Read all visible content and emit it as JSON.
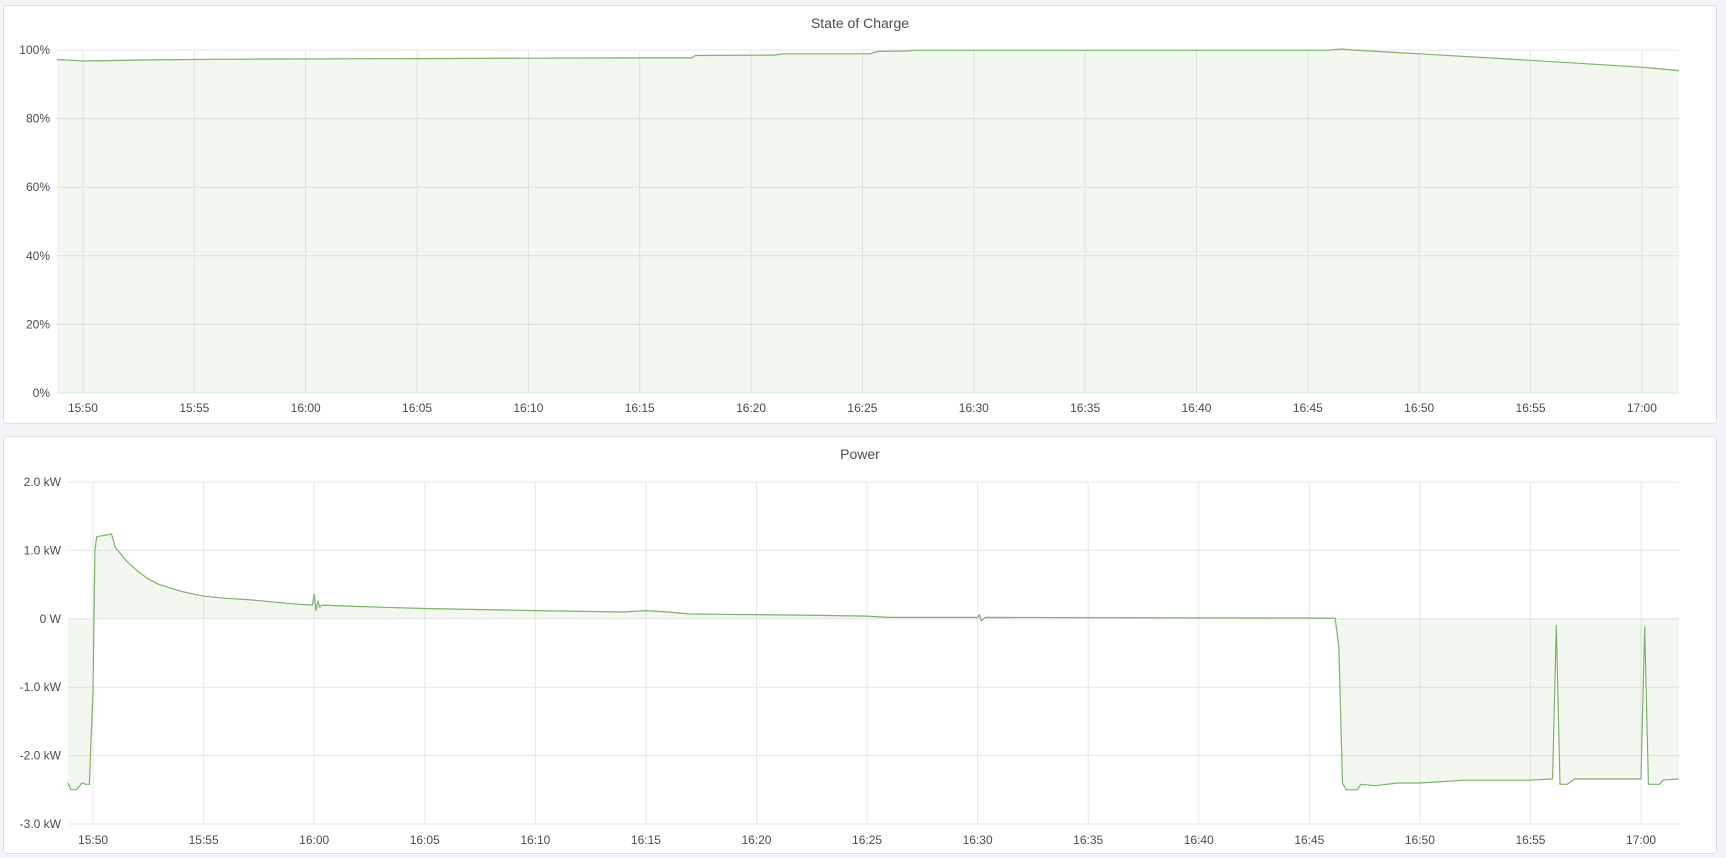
{
  "chart_data": [
    {
      "type": "area",
      "title": "State of Charge",
      "xlabel": "",
      "ylabel": "",
      "x_range": [
        "15:48:50",
        "17:01:40"
      ],
      "ylim": [
        0,
        100
      ],
      "y_ticks": [
        "0%",
        "20%",
        "40%",
        "60%",
        "80%",
        "100%"
      ],
      "y_tick_values": [
        0,
        20,
        40,
        60,
        80,
        100
      ],
      "x_ticks": [
        "15:50",
        "15:55",
        "16:00",
        "16:05",
        "16:10",
        "16:15",
        "16:20",
        "16:25",
        "16:30",
        "16:35",
        "16:40",
        "16:45",
        "16:50",
        "16:55",
        "17:00"
      ],
      "grid": true,
      "fill": "to-zero",
      "line_color": "#7eb26d",
      "series": [
        {
          "points": [
            [
              "15:48:50",
              97.2
            ],
            [
              "15:49:30",
              97.0
            ],
            [
              "15:50:00",
              96.8
            ],
            [
              "15:51:00",
              96.9
            ],
            [
              "15:53:00",
              97.1
            ],
            [
              "15:56:00",
              97.3
            ],
            [
              "16:00:00",
              97.4
            ],
            [
              "16:05:00",
              97.5
            ],
            [
              "16:10:00",
              97.6
            ],
            [
              "16:15:00",
              97.7
            ],
            [
              "16:17:20",
              97.7
            ],
            [
              "16:17:30",
              98.4
            ],
            [
              "16:21:00",
              98.5
            ],
            [
              "16:21:30",
              98.9
            ],
            [
              "16:25:20",
              98.9
            ],
            [
              "16:25:40",
              99.6
            ],
            [
              "16:27:00",
              99.7
            ],
            [
              "16:27:20",
              99.9
            ],
            [
              "16:45:50",
              99.9
            ],
            [
              "16:46:30",
              100.3
            ],
            [
              "16:47:00",
              100.0
            ],
            [
              "16:50:00",
              98.9
            ],
            [
              "16:55:00",
              97.0
            ],
            [
              "17:00:00",
              95.0
            ],
            [
              "17:01:40",
              94.0
            ]
          ]
        }
      ]
    },
    {
      "type": "area",
      "title": "Power",
      "xlabel": "",
      "ylabel": "",
      "x_range": [
        "15:48:52",
        "17:01:43"
      ],
      "ylim": [
        -3.0,
        2.0
      ],
      "y_unit": "kW",
      "y_ticks": [
        "-3.0 kW",
        "-2.0 kW",
        "-1.0 kW",
        "0 W",
        "1.0 kW",
        "2.0 kW"
      ],
      "y_tick_values": [
        -3,
        -2,
        -1,
        0,
        1,
        2
      ],
      "x_ticks": [
        "15:50",
        "15:55",
        "16:00",
        "16:05",
        "16:10",
        "16:15",
        "16:20",
        "16:25",
        "16:30",
        "16:35",
        "16:40",
        "16:45",
        "16:50",
        "16:55",
        "17:00"
      ],
      "grid": true,
      "fill": "to-zero",
      "line_color": "#7eb26d",
      "series": [
        {
          "points": [
            [
              "15:48:52",
              -2.4
            ],
            [
              "15:49:00",
              -2.5
            ],
            [
              "15:49:15",
              -2.5
            ],
            [
              "15:49:30",
              -2.4
            ],
            [
              "15:49:40",
              -2.42
            ],
            [
              "15:49:50",
              -2.42
            ],
            [
              "15:50:00",
              -1.0
            ],
            [
              "15:50:05",
              1.0
            ],
            [
              "15:50:10",
              1.2
            ],
            [
              "15:50:30",
              1.22
            ],
            [
              "15:50:50",
              1.24
            ],
            [
              "15:51:00",
              1.05
            ],
            [
              "15:51:30",
              0.85
            ],
            [
              "15:52:00",
              0.7
            ],
            [
              "15:52:30",
              0.58
            ],
            [
              "15:53:00",
              0.5
            ],
            [
              "15:54:00",
              0.4
            ],
            [
              "15:55:00",
              0.33
            ],
            [
              "15:56:00",
              0.3
            ],
            [
              "15:57:00",
              0.28
            ],
            [
              "15:58:00",
              0.25
            ],
            [
              "15:59:00",
              0.22
            ],
            [
              "15:59:55",
              0.2
            ],
            [
              "16:00:00",
              0.36
            ],
            [
              "16:00:05",
              0.12
            ],
            [
              "16:00:10",
              0.26
            ],
            [
              "16:00:15",
              0.17
            ],
            [
              "16:00:20",
              0.2
            ],
            [
              "16:02:00",
              0.18
            ],
            [
              "16:05:00",
              0.15
            ],
            [
              "16:10:00",
              0.12
            ],
            [
              "16:14:00",
              0.1
            ],
            [
              "16:15:00",
              0.12
            ],
            [
              "16:16:00",
              0.1
            ],
            [
              "16:17:00",
              0.07
            ],
            [
              "16:20:00",
              0.06
            ],
            [
              "16:23:00",
              0.05
            ],
            [
              "16:25:00",
              0.04
            ],
            [
              "16:26:00",
              0.02
            ],
            [
              "16:30:00",
              0.02
            ],
            [
              "16:30:05",
              0.06
            ],
            [
              "16:30:10",
              -0.03
            ],
            [
              "16:30:20",
              0.02
            ],
            [
              "16:46:10",
              0.01
            ],
            [
              "16:46:20",
              -0.4
            ],
            [
              "16:46:30",
              -2.4
            ],
            [
              "16:46:40",
              -2.5
            ],
            [
              "16:47:10",
              -2.5
            ],
            [
              "16:47:20",
              -2.42
            ],
            [
              "16:48:00",
              -2.44
            ],
            [
              "16:49:00",
              -2.4
            ],
            [
              "16:50:00",
              -2.4
            ],
            [
              "16:52:00",
              -2.36
            ],
            [
              "16:55:00",
              -2.36
            ],
            [
              "16:56:00",
              -2.34
            ],
            [
              "16:56:10",
              -0.1
            ],
            [
              "16:56:20",
              -2.42
            ],
            [
              "16:56:40",
              -2.42
            ],
            [
              "16:57:00",
              -2.34
            ],
            [
              "16:59:00",
              -2.34
            ],
            [
              "17:00:00",
              -2.34
            ],
            [
              "17:00:10",
              -0.12
            ],
            [
              "17:00:20",
              -2.42
            ],
            [
              "17:00:50",
              -2.42
            ],
            [
              "17:01:00",
              -2.36
            ],
            [
              "17:01:43",
              -2.34
            ]
          ]
        }
      ]
    }
  ]
}
